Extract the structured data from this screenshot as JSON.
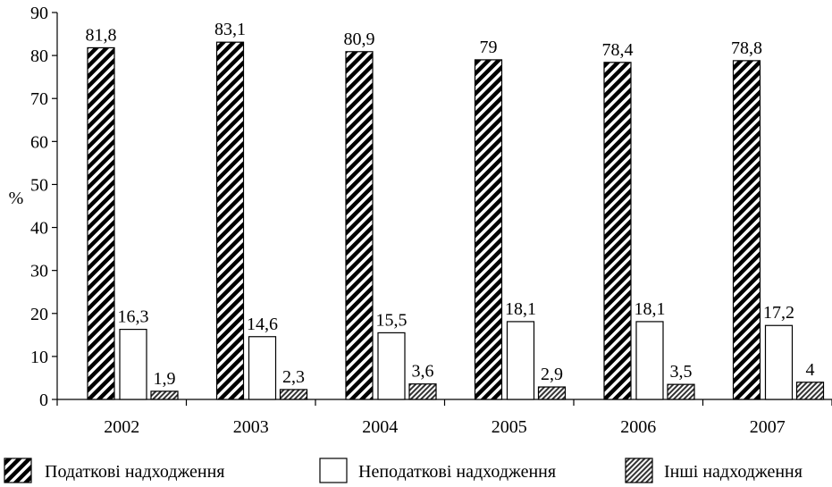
{
  "chart_data": {
    "type": "bar",
    "categories": [
      "2002",
      "2003",
      "2004",
      "2005",
      "2006",
      "2007"
    ],
    "series": [
      {
        "name": "Податкові надходження",
        "values": [
          81.8,
          83.1,
          80.9,
          79,
          78.4,
          78.8
        ],
        "labels": [
          "81,8",
          "83,1",
          "80,9",
          "79",
          "78,4",
          "78,8"
        ],
        "fill": "diag-black"
      },
      {
        "name": "Неподаткові надходження",
        "values": [
          16.3,
          14.6,
          15.5,
          18.1,
          18.1,
          17.2
        ],
        "labels": [
          "16,3",
          "14,6",
          "15,5",
          "18,1",
          "18,1",
          "17,2"
        ],
        "fill": "white"
      },
      {
        "name": "Інші надходження",
        "values": [
          1.9,
          2.3,
          3.6,
          2.9,
          3.5,
          4
        ],
        "labels": [
          "1,9",
          "2,3",
          "3,6",
          "2,9",
          "3,5",
          "4"
        ],
        "fill": "diag-gray"
      }
    ],
    "title": "",
    "xlabel": "",
    "ylabel": "%",
    "ylim": [
      0,
      90
    ],
    "yticks": [
      "0",
      "10",
      "20",
      "30",
      "40",
      "50",
      "60",
      "70",
      "80",
      "90"
    ],
    "grid": false,
    "legend_position": "bottom"
  },
  "colors": {
    "bar_stroke": "#000000",
    "stripe_dark": "#000000",
    "stripe_gray": "#333333",
    "background": "#ffffff"
  }
}
